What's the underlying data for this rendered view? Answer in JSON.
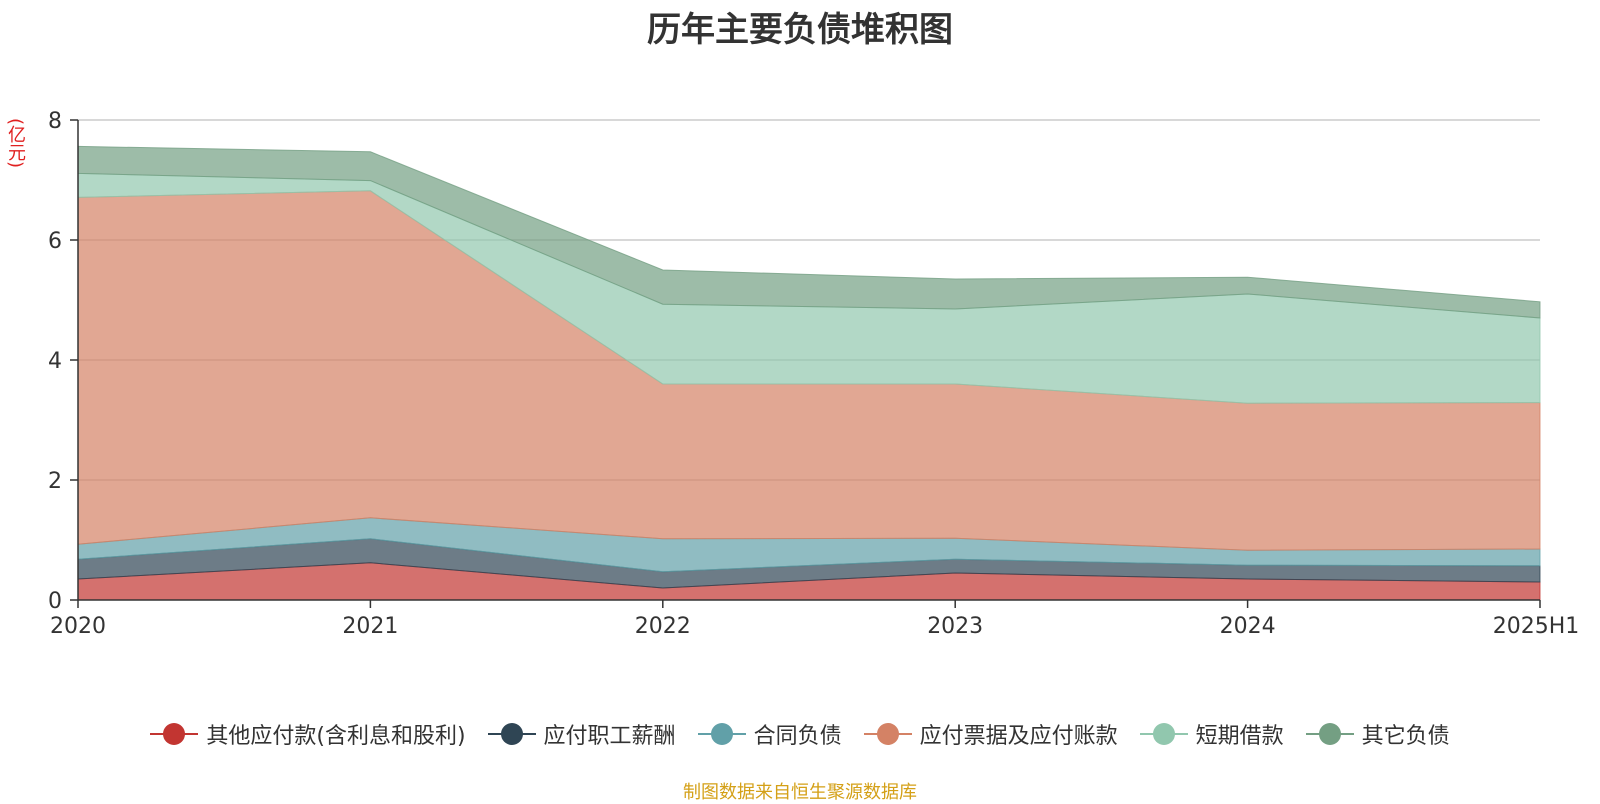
{
  "chart_data": {
    "type": "area",
    "title": "历年主要负债堆积图",
    "ylabel": "(亿元)",
    "categories": [
      "2020",
      "2021",
      "2022",
      "2023",
      "2024",
      "2025H1"
    ],
    "ylim": [
      0,
      8
    ],
    "yticks": [
      "0",
      "2",
      "4",
      "6",
      "8"
    ],
    "stacked": true,
    "grid": true,
    "legend_position": "bottom",
    "series": [
      {
        "name": "其他应付款(含利息和股利)",
        "color": "#c23531",
        "values": [
          0.35,
          0.62,
          0.2,
          0.45,
          0.35,
          0.3
        ]
      },
      {
        "name": "应付职工薪酬",
        "color": "#2f4554",
        "values": [
          0.33,
          0.4,
          0.27,
          0.23,
          0.23,
          0.27
        ]
      },
      {
        "name": "合同负债",
        "color": "#61a0a8",
        "values": [
          0.25,
          0.35,
          0.55,
          0.35,
          0.25,
          0.28
        ]
      },
      {
        "name": "应付票据及应付账款",
        "color": "#d48265",
        "values": [
          5.78,
          5.45,
          2.58,
          2.57,
          2.45,
          2.44
        ]
      },
      {
        "name": "短期借款",
        "color": "#91c7ae",
        "values": [
          0.4,
          0.17,
          1.33,
          1.25,
          1.82,
          1.41
        ]
      },
      {
        "name": "其它负债",
        "color": "#749f83",
        "values": [
          0.45,
          0.48,
          0.57,
          0.5,
          0.28,
          0.27
        ]
      }
    ]
  },
  "footer": {
    "source": "制图数据来自恒生聚源数据库"
  }
}
